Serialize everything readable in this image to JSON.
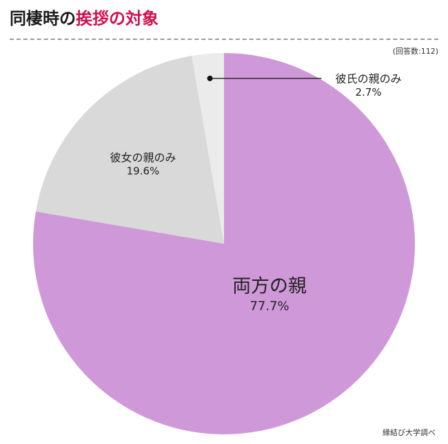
{
  "title": {
    "main": "同棲時の",
    "accent": "挨拶の対象"
  },
  "note": "(回答数:112)",
  "source": "縁結び大学調べ",
  "colors": {
    "accent": "#d0104c",
    "divider": "#9a9a9a"
  },
  "chart_data": {
    "type": "pie",
    "start": "12 o'clock",
    "direction": "clockwise",
    "slices": [
      {
        "label": "両方の親",
        "value": 77.7,
        "display": "77.7%",
        "color": "#cf98d9"
      },
      {
        "label": "彼女の親のみ",
        "value": 19.6,
        "display": "19.6%",
        "color": "#d9d9d9"
      },
      {
        "label": "彼氏の親のみ",
        "value": 2.7,
        "display": "2.7%",
        "color": "#ebebeb"
      }
    ]
  }
}
